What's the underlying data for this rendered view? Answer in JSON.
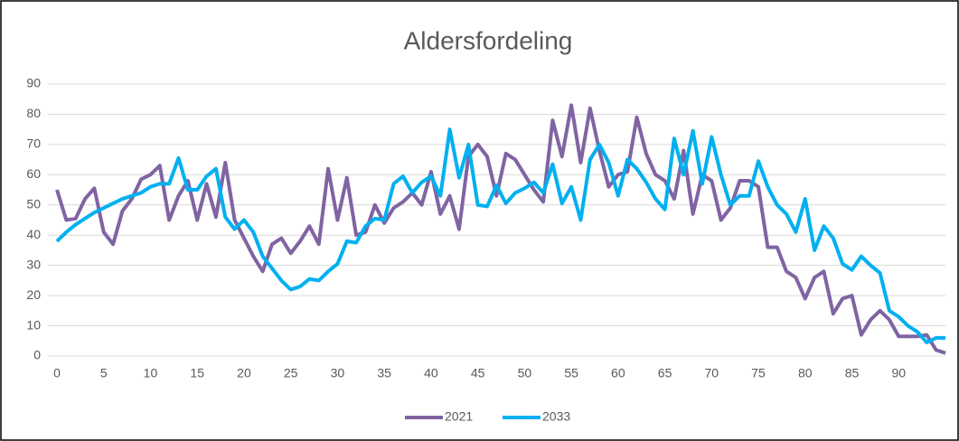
{
  "chart_data": {
    "type": "line",
    "title": "Aldersfordeling",
    "x": [
      0,
      1,
      2,
      3,
      4,
      5,
      6,
      7,
      8,
      9,
      10,
      11,
      12,
      13,
      14,
      15,
      16,
      17,
      18,
      19,
      20,
      21,
      22,
      23,
      24,
      25,
      26,
      27,
      28,
      29,
      30,
      31,
      32,
      33,
      34,
      35,
      36,
      37,
      38,
      39,
      40,
      41,
      42,
      43,
      44,
      45,
      46,
      47,
      48,
      49,
      50,
      51,
      52,
      53,
      54,
      55,
      56,
      57,
      58,
      59,
      60,
      61,
      62,
      63,
      64,
      65,
      66,
      67,
      68,
      69,
      70,
      71,
      72,
      73,
      74,
      75,
      76,
      77,
      78,
      79,
      80,
      81,
      82,
      83,
      84,
      85,
      86,
      87,
      88,
      89,
      90,
      91,
      92,
      93,
      94,
      95
    ],
    "series": [
      {
        "name": "2021",
        "color": "#8064a2",
        "values": [
          55,
          45,
          45.5,
          52,
          55.5,
          41,
          37,
          48,
          52,
          58.5,
          60,
          63,
          45,
          53,
          58,
          45,
          57,
          46,
          64,
          45,
          39,
          33,
          28,
          37,
          39,
          34,
          38,
          43,
          37,
          62,
          45,
          59,
          40,
          41,
          50,
          44,
          49,
          51,
          54,
          50,
          61,
          47,
          53,
          42,
          66,
          70,
          66,
          53,
          67,
          65,
          60,
          55,
          51,
          78,
          66,
          83,
          64,
          82,
          68,
          56,
          60,
          61,
          79,
          67,
          60,
          58,
          52,
          68,
          47,
          60,
          58,
          45,
          49,
          58,
          58,
          56,
          36,
          36,
          28,
          26,
          19,
          26,
          28,
          14,
          19,
          20,
          7,
          12,
          15,
          12,
          6.5,
          6.5,
          6.5,
          7,
          2,
          1
        ]
      },
      {
        "name": "2033",
        "color": "#00b0f0",
        "values": [
          38,
          41,
          43.5,
          45.5,
          47.5,
          49,
          50.5,
          52,
          53,
          54,
          56,
          57,
          57,
          65.5,
          55,
          55,
          59.5,
          62,
          46,
          42,
          45,
          41,
          33,
          29,
          25,
          22,
          23,
          25.5,
          25,
          28,
          30.5,
          38,
          37.5,
          43,
          45.5,
          45,
          57,
          59.5,
          54,
          57.5,
          59.5,
          53,
          75,
          59,
          70,
          50,
          49.5,
          56.5,
          50.5,
          54,
          55.5,
          57.5,
          54,
          63.5,
          50.5,
          56,
          45,
          65,
          70,
          64,
          53,
          65,
          62,
          57.5,
          52,
          48.5,
          72,
          60,
          74.5,
          57,
          72.5,
          60,
          50,
          53,
          53,
          64.5,
          56,
          50,
          47,
          41,
          52,
          35,
          43,
          39,
          30.5,
          28.5,
          33,
          30,
          27.5,
          15,
          13,
          10,
          8,
          4.5,
          6,
          6
        ]
      }
    ],
    "xlim": [
      0,
      95
    ],
    "xticks": [
      0,
      5,
      10,
      15,
      20,
      25,
      30,
      35,
      40,
      45,
      50,
      55,
      60,
      65,
      70,
      75,
      80,
      85,
      90
    ],
    "ylim": [
      0,
      90
    ],
    "yticks": [
      0,
      10,
      20,
      30,
      40,
      50,
      60,
      70,
      80,
      90
    ],
    "grid": true,
    "legend": "bottom"
  }
}
